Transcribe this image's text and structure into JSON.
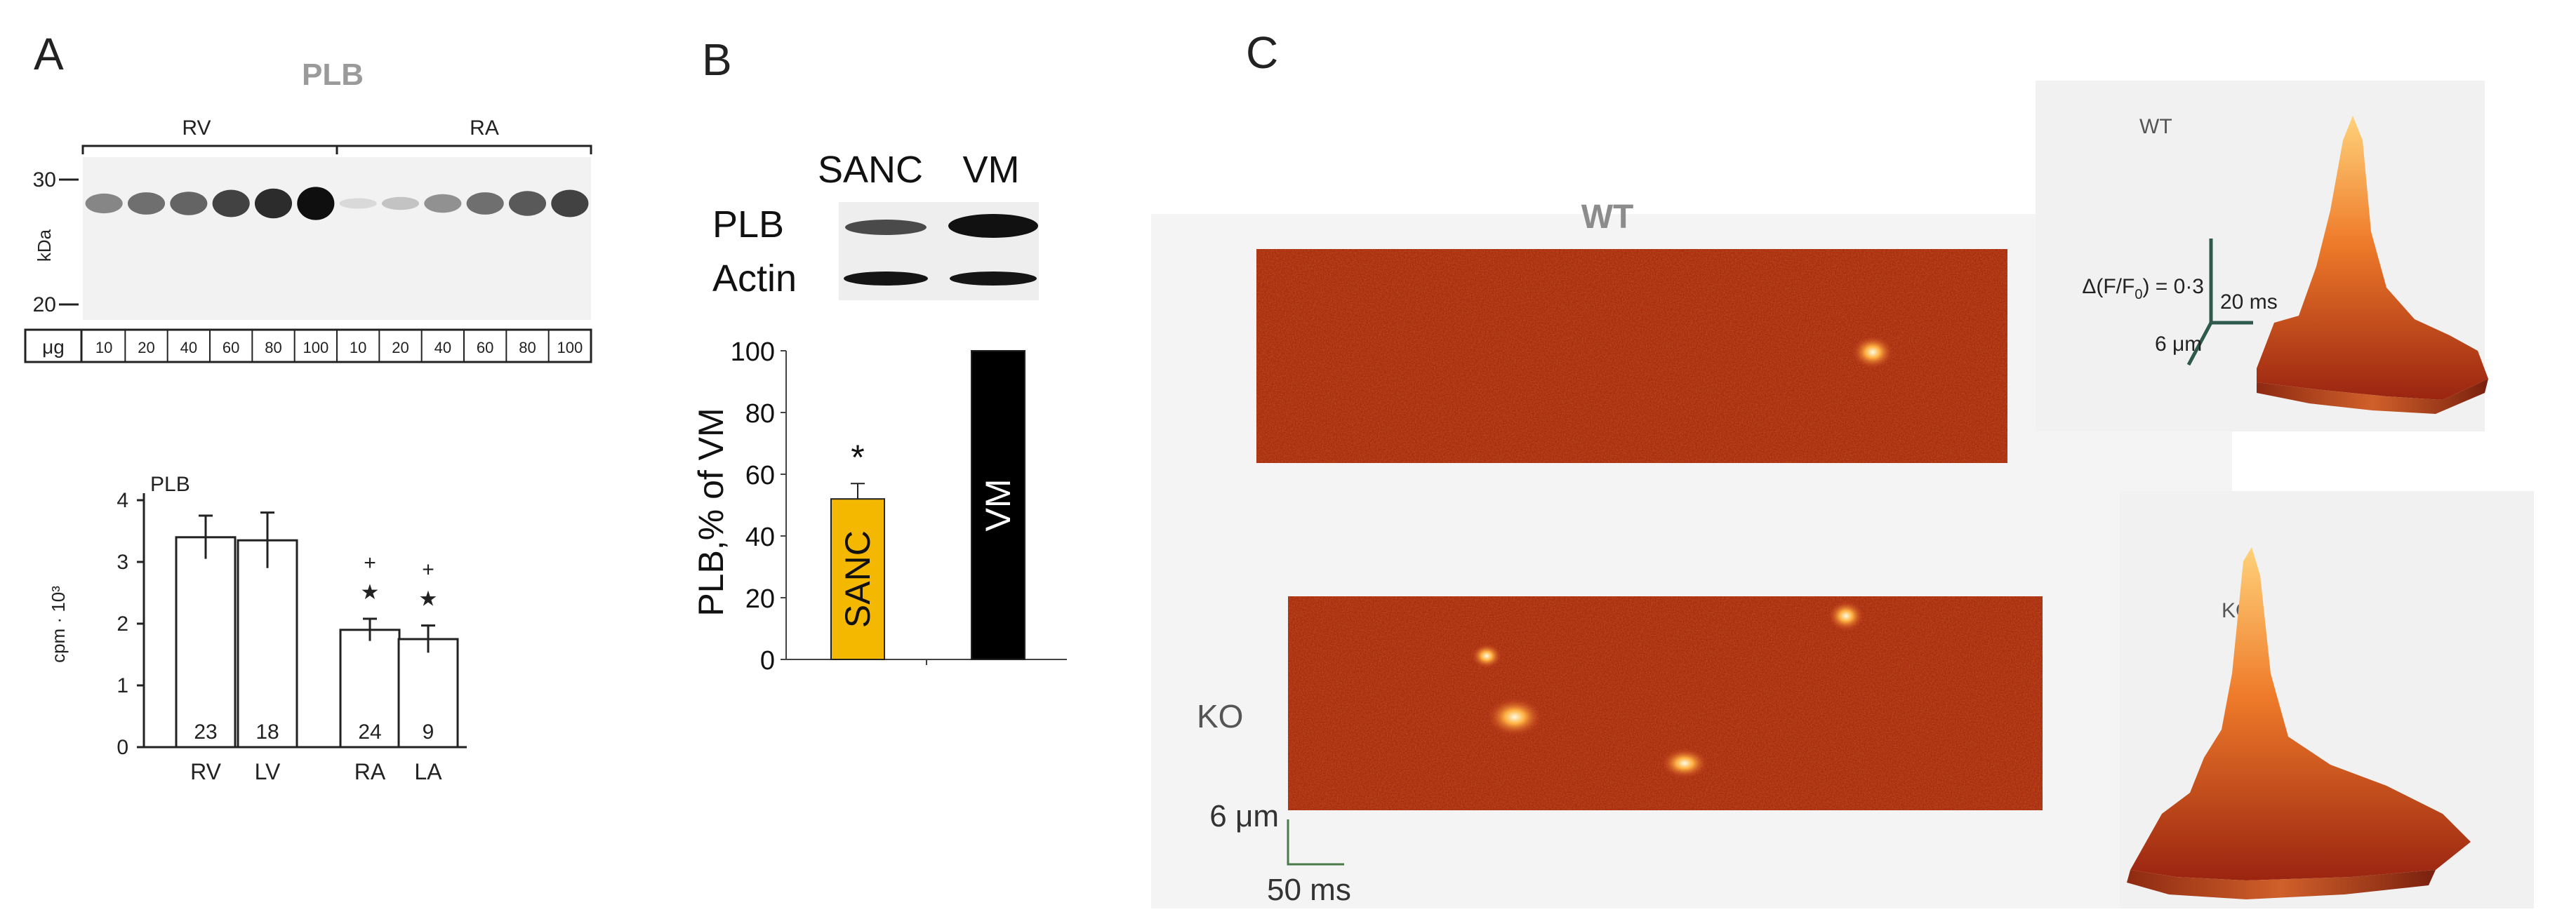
{
  "panel_a": {
    "letter": "A",
    "blot_title": "PLB",
    "group_labels": [
      "RV",
      "RA"
    ],
    "mw_markers": [
      "30",
      "20"
    ],
    "mw_unit": "kDa",
    "load_unit": "μg",
    "loads": [
      "10",
      "20",
      "40",
      "60",
      "80",
      "100",
      "10",
      "20",
      "40",
      "60",
      "80",
      "100"
    ],
    "band_intensity": [
      0.45,
      0.55,
      0.6,
      0.75,
      0.85,
      0.98,
      0.08,
      0.18,
      0.4,
      0.55,
      0.65,
      0.75
    ]
  },
  "panel_b": {
    "letter": "B",
    "col_labels": [
      "SANC",
      "VM"
    ],
    "row_labels": [
      "PLB",
      "Actin"
    ]
  },
  "panel_c": {
    "letter": "C",
    "wt_label": "WT",
    "ko_label": "KO",
    "wt_surface_label": "WT",
    "ko_surface_label": "KO",
    "scale_df": "Δ(F/F",
    "scale_df_sub": "0",
    "scale_df_tail": ") = 0·3",
    "scale_time_surface": "20 ms",
    "scale_space_surface": "6 μm",
    "scale_space_image": "6 μm",
    "scale_time_image": "50 ms"
  },
  "chart_data": [
    {
      "type": "bar",
      "title": "PLB",
      "categories": [
        "RV",
        "LV",
        "RA",
        "LA"
      ],
      "values": [
        3.4,
        3.35,
        1.9,
        1.75
      ],
      "errors": [
        0.35,
        0.45,
        0.18,
        0.22
      ],
      "n": [
        "23",
        "18",
        "24",
        "9"
      ],
      "markers": [
        "",
        "",
        "+★",
        "+★"
      ],
      "ylabel": "cpm · 10³",
      "yticks": [
        "0",
        "1",
        "2",
        "3",
        "4"
      ],
      "ylim": [
        0,
        4
      ],
      "bar_color": "#ffffff"
    },
    {
      "type": "bar",
      "title": "",
      "categories": [
        "SANC",
        "VM"
      ],
      "values": [
        52,
        100
      ],
      "errors": [
        5,
        0
      ],
      "markers": [
        "*",
        ""
      ],
      "bar_labels": [
        "SANC",
        "VM"
      ],
      "colors": [
        "#f5b800",
        "#000000"
      ],
      "ylabel": "PLB,% of  VM",
      "yticks": [
        "0",
        "20",
        "40",
        "60",
        "80",
        "100"
      ],
      "ylim": [
        0,
        100
      ]
    }
  ]
}
